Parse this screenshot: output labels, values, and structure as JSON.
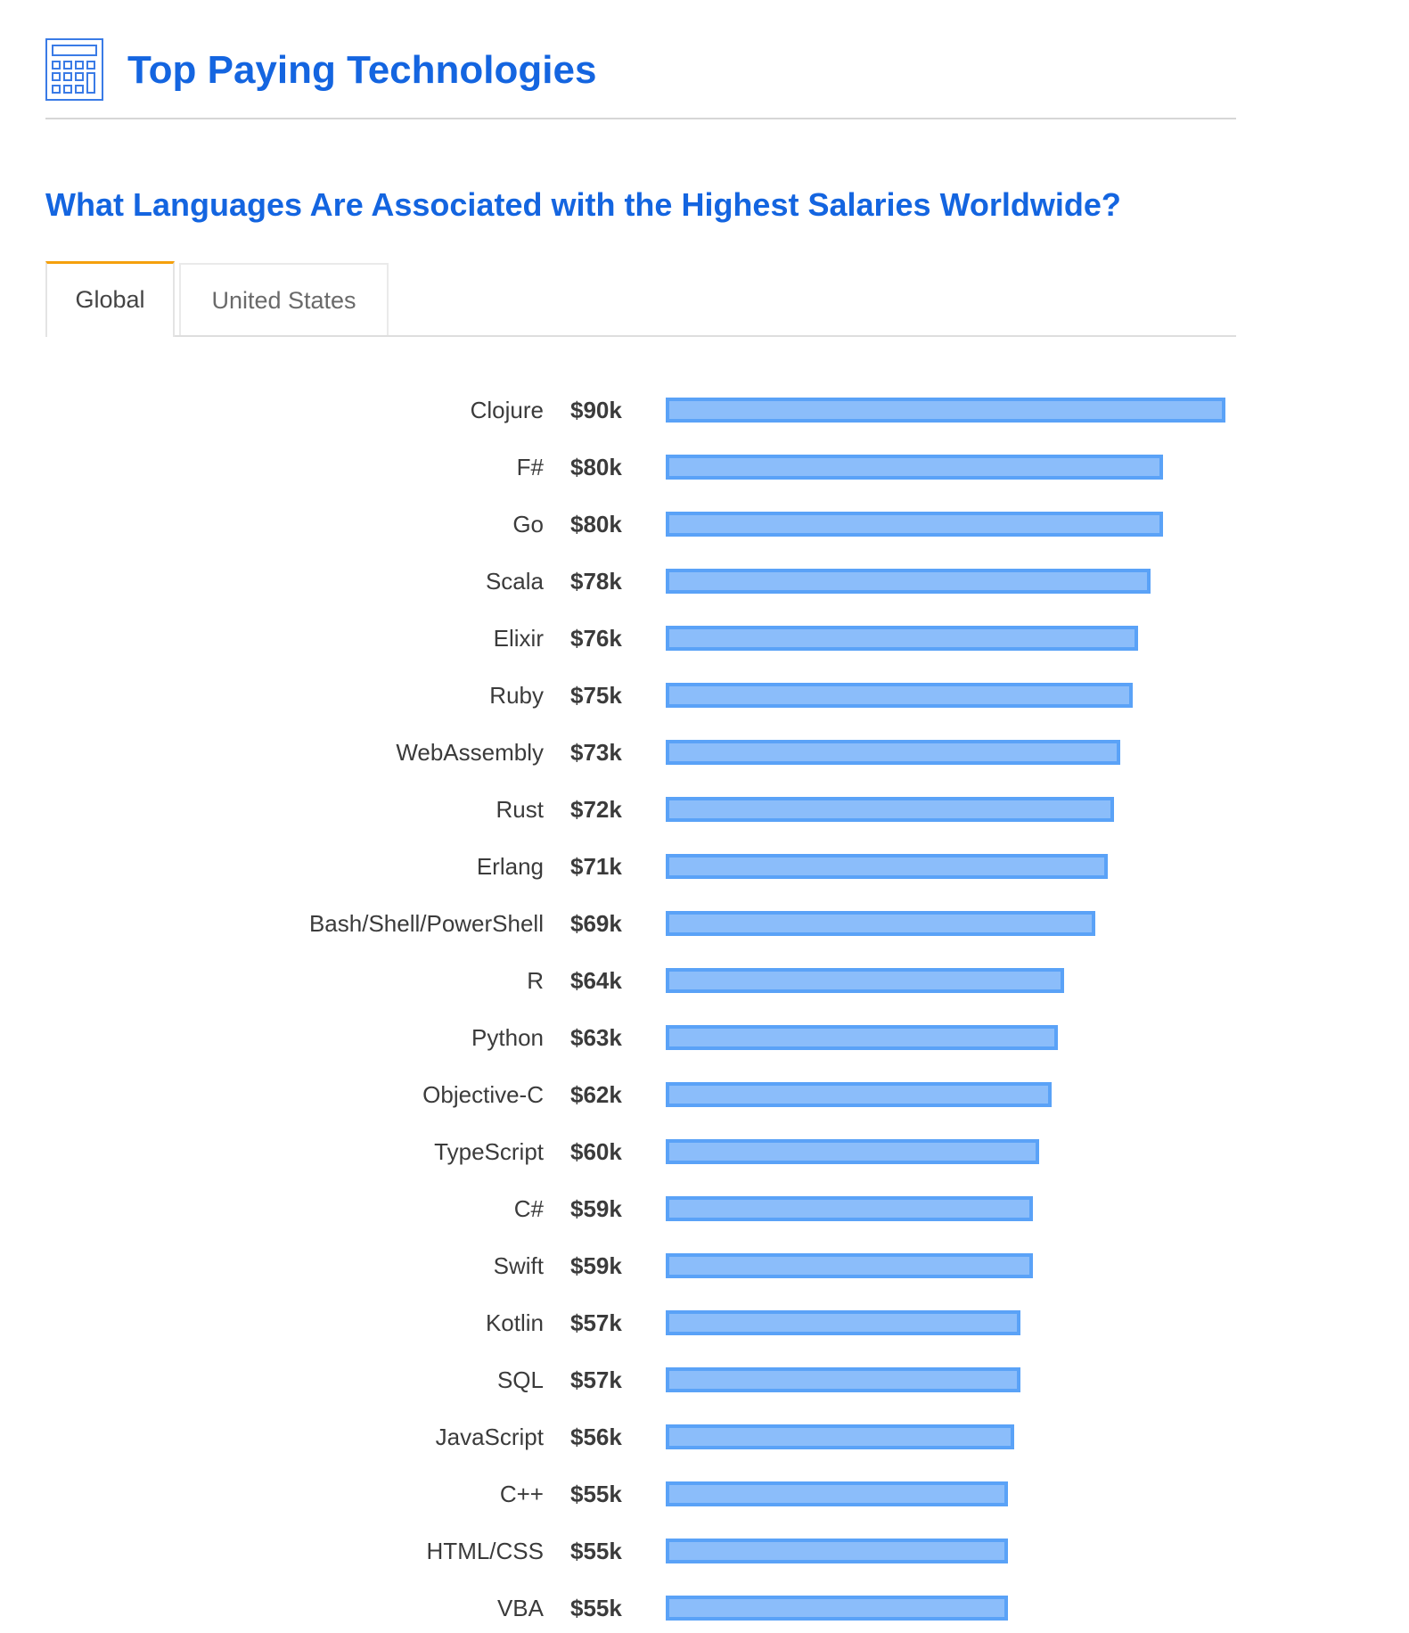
{
  "header": {
    "icon": "calculator-icon",
    "title": "Top Paying Technologies"
  },
  "subtitle": "What Languages Are Associated with the Highest Salaries Worldwide?",
  "tabs": [
    {
      "label": "Global",
      "active": true
    },
    {
      "label": "United States",
      "active": false
    }
  ],
  "colors": {
    "title": "#1465e0",
    "tab_active_accent": "#f5a00c",
    "bar_fill": "#8bbdfa",
    "bar_border": "#5aa2f7",
    "text": "#3b3b3b"
  },
  "chart_data": {
    "type": "bar",
    "orientation": "horizontal",
    "title": "What Languages Are Associated with the Highest Salaries Worldwide?",
    "xlabel": "",
    "ylabel": "",
    "unit": "USD thousands (median salary)",
    "grid": false,
    "legend": null,
    "categories": [
      "Clojure",
      "F#",
      "Go",
      "Scala",
      "Elixir",
      "Ruby",
      "WebAssembly",
      "Rust",
      "Erlang",
      "Bash/Shell/PowerShell",
      "R",
      "Python",
      "Objective-C",
      "TypeScript",
      "C#",
      "Swift",
      "Kotlin",
      "SQL",
      "JavaScript",
      "C++",
      "HTML/CSS",
      "VBA"
    ],
    "values": [
      90,
      80,
      80,
      78,
      76,
      75,
      73,
      72,
      71,
      69,
      64,
      63,
      62,
      60,
      59,
      59,
      57,
      57,
      56,
      55,
      55,
      55
    ],
    "value_labels": [
      "$90k",
      "$80k",
      "$80k",
      "$78k",
      "$76k",
      "$75k",
      "$73k",
      "$72k",
      "$71k",
      "$69k",
      "$64k",
      "$63k",
      "$62k",
      "$60k",
      "$59k",
      "$59k",
      "$57k",
      "$57k",
      "$56k",
      "$55k",
      "$55k",
      "$55k"
    ],
    "xlim": [
      0,
      90
    ]
  }
}
